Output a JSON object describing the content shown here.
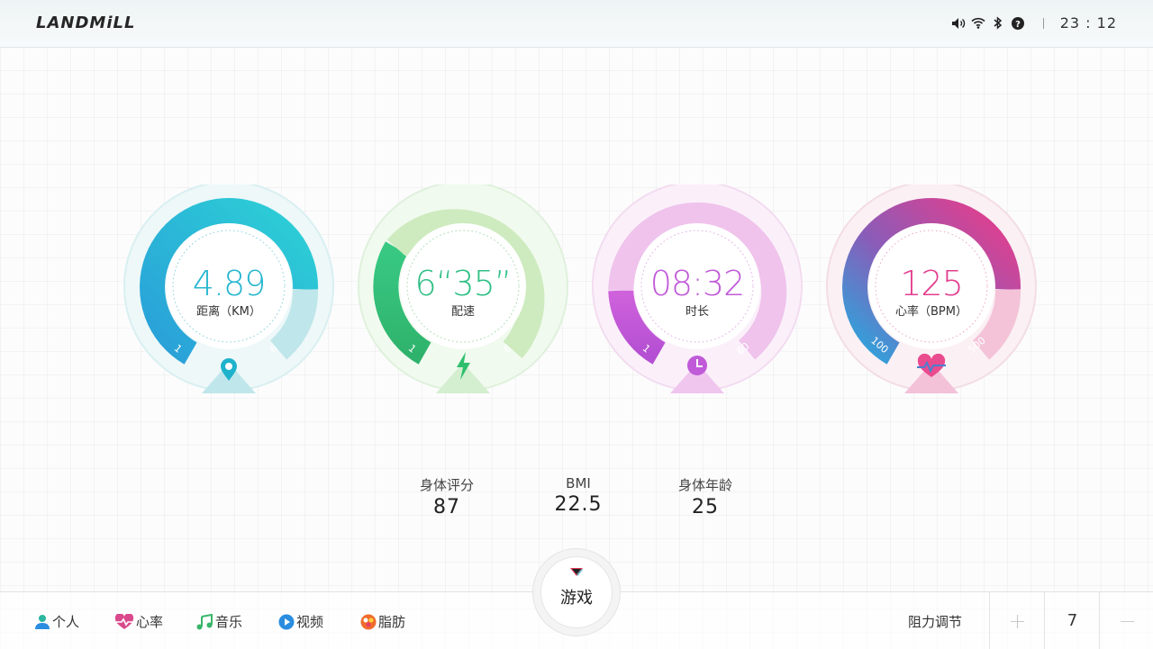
{
  "header": {
    "logo": "LANDMiLL",
    "time": "23 : 12",
    "icons": [
      "volume-icon",
      "wifi-icon",
      "bluetooth-icon",
      "help-icon"
    ]
  },
  "gauges": [
    {
      "id": "distance",
      "value": "4.89",
      "label": "距离（KM）",
      "min": "1",
      "max": "6",
      "level": 0.78,
      "color": "#27bcd6",
      "icon": "location-pin-icon"
    },
    {
      "id": "pace",
      "value": "6“35”",
      "label": "配速",
      "min": "1",
      "max": "6",
      "level": 0.18,
      "color": "#2fbf84",
      "icon": "lightning-icon"
    },
    {
      "id": "duration",
      "value": "08:32",
      "label": "时长",
      "min": "1",
      "max": "60",
      "level": 0.15,
      "color": "#c05ad8",
      "icon": "clock-icon"
    },
    {
      "id": "heartrate",
      "value": "125",
      "label": "心率（BPM）",
      "min": "100",
      "max": "500",
      "level": 0.78,
      "color": "#e23c8e",
      "icon": "heart-pulse-icon"
    }
  ],
  "stats": [
    {
      "title": "身体评分",
      "value": "87"
    },
    {
      "title": "BMI",
      "value": "22.5"
    },
    {
      "title": "身体年龄",
      "value": "25"
    }
  ],
  "footer": {
    "nav": [
      {
        "label": "个人",
        "icon": "person-icon",
        "color": "#2bb6a0"
      },
      {
        "label": "心率",
        "icon": "heart-icon",
        "color": "#d94a8c"
      },
      {
        "label": "音乐",
        "icon": "music-icon",
        "color": "#3ab56b"
      },
      {
        "label": "视频",
        "icon": "play-icon",
        "color": "#2a8de0"
      },
      {
        "label": "脂肪",
        "icon": "fat-icon",
        "color": "#f06c2e"
      }
    ],
    "game": "游戏",
    "resistance_label": "阻力调节",
    "resistance_value": "7",
    "plus": "+",
    "minus": "−"
  }
}
